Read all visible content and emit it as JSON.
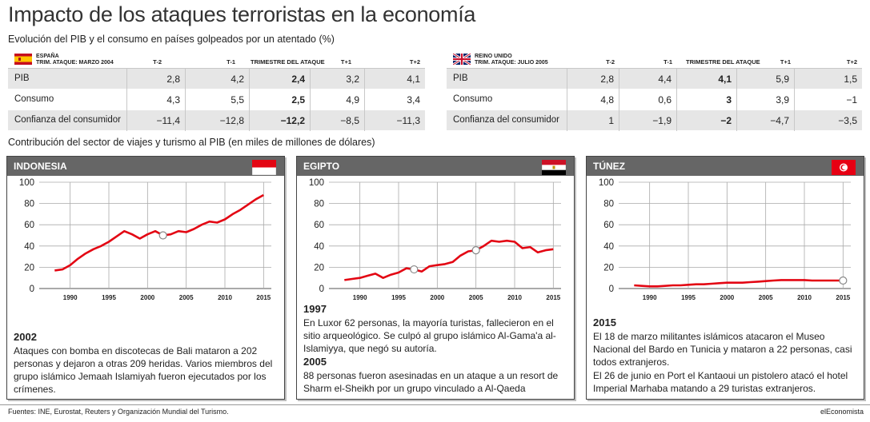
{
  "title": "Impacto de los ataques terroristas en la economía",
  "subtitle": "Evolución del PIB y el consumo en países golpeados por un atentado (%)",
  "col_headers": [
    "T-2",
    "T-1",
    "TRIMESTRE DEL ATAQUE",
    "T+1",
    "T+2"
  ],
  "tables": [
    {
      "country": "ESPAÑA",
      "attack": "TRIM. ATAQUE: MARZO 2004",
      "rows": [
        {
          "label": "PIB",
          "values": [
            "2,8",
            "4,2",
            "2,4",
            "3,2",
            "4,1"
          ]
        },
        {
          "label": "Consumo",
          "values": [
            "4,3",
            "5,5",
            "2,5",
            "4,9",
            "3,4"
          ]
        },
        {
          "label": "Confianza del consumidor",
          "values": [
            "−11,4",
            "−12,8",
            "−12,2",
            "−8,5",
            "−11,3"
          ]
        }
      ]
    },
    {
      "country": "REINO UNIDO",
      "attack": "TRIM. ATAQUE: JULIO 2005",
      "rows": [
        {
          "label": "PIB",
          "values": [
            "2,8",
            "4,4",
            "4,1",
            "5,9",
            "1,5"
          ]
        },
        {
          "label": "Consumo",
          "values": [
            "4,8",
            "0,6",
            "3",
            "3,9",
            "−1"
          ]
        },
        {
          "label": "Confianza del consumidor",
          "values": [
            "1",
            "−1,9",
            "−2",
            "−4,7",
            "−3,5"
          ]
        }
      ]
    }
  ],
  "section_title": "Contribución del sector de viajes y turismo al PIB (en miles de millones de dólares)",
  "panels": [
    {
      "name": "INDONESIA",
      "year1": "2002",
      "note1": "Ataques con bomba en discotecas de Bali mataron a 202 personas y dejaron a otras 209 heridas. Varios miembros del grupo islámico Jemaah Islamiyah fueron ejecutados por los crímenes.",
      "year2": "",
      "note2": "",
      "note2b": ""
    },
    {
      "name": "EGIPTO",
      "year1": "1997",
      "note1": "En Luxor 62 personas, la mayoría turistas, fallecieron en el sitio arqueológico. Se culpó al grupo islámico Al-Gama'a al-Islamiyya, que negó su autoría.",
      "year2": "2005",
      "note2": "88 personas fueron asesinadas en un ataque a un resort de Sharm el-Sheikh por un grupo vinculado a Al-Qaeda",
      "note2b": ""
    },
    {
      "name": "TÚNEZ",
      "year1": "2015",
      "note1": "El 18 de marzo militantes islámicos atacaron el Museo Nacional del Bardo en Tunicia y mataron a 22 personas, casi todos extranjeros.",
      "year2": "",
      "note2": "El 26 de junio en Port el Kantaoui un pistolero atacó el hotel Imperial Marhaba matando a 29 turistas extranjeros.",
      "note2b": ""
    }
  ],
  "chart_data": [
    {
      "type": "line",
      "title": "INDONESIA",
      "x": [
        1988,
        1989,
        1990,
        1991,
        1992,
        1993,
        1994,
        1995,
        1996,
        1997,
        1998,
        1999,
        2000,
        2001,
        2002,
        2003,
        2004,
        2005,
        2006,
        2007,
        2008,
        2009,
        2010,
        2011,
        2012,
        2013,
        2014,
        2015
      ],
      "y": [
        17,
        18,
        22,
        28,
        33,
        37,
        40,
        44,
        49,
        54,
        51,
        47,
        51,
        54,
        50,
        51,
        54,
        53,
        56,
        60,
        63,
        62,
        65,
        70,
        74,
        79,
        84,
        88
      ],
      "markers": [
        2002
      ],
      "xticks": [
        1990,
        1995,
        2000,
        2005,
        2010,
        2015
      ],
      "yticks": [
        0,
        20,
        40,
        60,
        80,
        100
      ],
      "xlim": [
        1986,
        2016
      ],
      "ylim": [
        0,
        100
      ],
      "color": "#e30613"
    },
    {
      "type": "line",
      "title": "EGIPTO",
      "x": [
        1988,
        1989,
        1990,
        1991,
        1992,
        1993,
        1994,
        1995,
        1996,
        1997,
        1998,
        1999,
        2000,
        2001,
        2002,
        2003,
        2004,
        2005,
        2006,
        2007,
        2008,
        2009,
        2010,
        2011,
        2012,
        2013,
        2014,
        2015
      ],
      "y": [
        8,
        9,
        10,
        12,
        14,
        10,
        13,
        15,
        19,
        18,
        16,
        21,
        22,
        23,
        25,
        31,
        35,
        36,
        40,
        45,
        44,
        45,
        44,
        38,
        39,
        34,
        36,
        37
      ],
      "markers": [
        1997,
        2005
      ],
      "xticks": [
        1990,
        1995,
        2000,
        2005,
        2010,
        2015
      ],
      "yticks": [
        0,
        20,
        40,
        60,
        80,
        100
      ],
      "xlim": [
        1986,
        2016
      ],
      "ylim": [
        0,
        100
      ],
      "color": "#e30613"
    },
    {
      "type": "line",
      "title": "TÚNEZ",
      "x": [
        1988,
        1989,
        1990,
        1991,
        1992,
        1993,
        1994,
        1995,
        1996,
        1997,
        1998,
        1999,
        2000,
        2001,
        2002,
        2003,
        2004,
        2005,
        2006,
        2007,
        2008,
        2009,
        2010,
        2011,
        2012,
        2013,
        2014,
        2015
      ],
      "y": [
        3,
        2.5,
        2,
        2,
        2.5,
        3,
        3,
        3.5,
        4,
        4,
        4.5,
        5,
        5.5,
        5.5,
        5.5,
        6,
        6.5,
        7,
        7.5,
        8,
        8,
        8,
        8,
        7.5,
        7.5,
        7.5,
        7.5,
        7.5
      ],
      "markers": [
        2015
      ],
      "xticks": [
        1990,
        1995,
        2000,
        2005,
        2010,
        2015
      ],
      "yticks": [
        0,
        20,
        40,
        60,
        80,
        100
      ],
      "xlim": [
        1986,
        2016
      ],
      "ylim": [
        0,
        100
      ],
      "color": "#e30613"
    }
  ],
  "sources": "Fuentes: INE, Eurostat, Reuters y Organización Mundial del Turismo.",
  "brand": "elEconomista"
}
